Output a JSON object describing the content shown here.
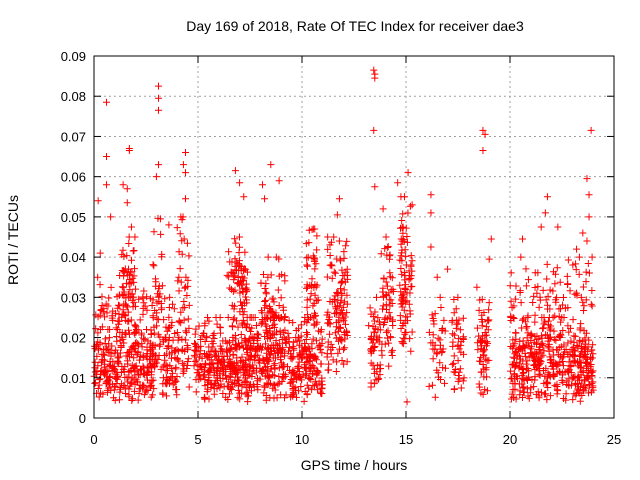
{
  "chart_data": {
    "type": "scatter",
    "title": "Day 169 of 2018, Rate Of TEC Index for receiver dae3",
    "xlabel": "GPS time / hours",
    "ylabel": "ROTI / TECUs",
    "xlim": [
      0,
      25
    ],
    "ylim": [
      0,
      0.09
    ],
    "xticks": [
      "0",
      "5",
      "10",
      "15",
      "20",
      "25"
    ],
    "yticks": [
      "0",
      "0.01",
      "0.02",
      "0.03",
      "0.04",
      "0.05",
      "0.06",
      "0.07",
      "0.08",
      "0.09"
    ],
    "grid": true,
    "marker": "plus",
    "color": "#ff0000",
    "clusters": [
      {
        "x": [
          0.0,
          3.0
        ],
        "y": [
          0.004,
          0.022
        ],
        "n": 260
      },
      {
        "x": [
          0.0,
          3.0
        ],
        "y": [
          0.015,
          0.035
        ],
        "n": 90
      },
      {
        "x": [
          1.2,
          2.0
        ],
        "y": [
          0.02,
          0.045
        ],
        "n": 60
      },
      {
        "x": [
          2.8,
          3.3
        ],
        "y": [
          0.01,
          0.05
        ],
        "n": 40
      },
      {
        "x": [
          3.3,
          4.0
        ],
        "y": [
          0.004,
          0.03
        ],
        "n": 70
      },
      {
        "x": [
          4.0,
          4.6
        ],
        "y": [
          0.005,
          0.05
        ],
        "n": 60
      },
      {
        "x": [
          4.8,
          11.0
        ],
        "y": [
          0.004,
          0.025
        ],
        "n": 650
      },
      {
        "x": [
          6.4,
          7.4
        ],
        "y": [
          0.02,
          0.045
        ],
        "n": 80
      },
      {
        "x": [
          8.0,
          9.2
        ],
        "y": [
          0.015,
          0.04
        ],
        "n": 80
      },
      {
        "x": [
          10.2,
          10.8
        ],
        "y": [
          0.02,
          0.047
        ],
        "n": 50
      },
      {
        "x": [
          11.2,
          12.2
        ],
        "y": [
          0.01,
          0.045
        ],
        "n": 120
      },
      {
        "x": [
          13.2,
          13.8
        ],
        "y": [
          0.007,
          0.03
        ],
        "n": 50
      },
      {
        "x": [
          13.8,
          14.4
        ],
        "y": [
          0.012,
          0.045
        ],
        "n": 60
      },
      {
        "x": [
          14.7,
          15.3
        ],
        "y": [
          0.015,
          0.055
        ],
        "n": 90
      },
      {
        "x": [
          16.1,
          16.9
        ],
        "y": [
          0.005,
          0.03
        ],
        "n": 40
      },
      {
        "x": [
          17.2,
          17.8
        ],
        "y": [
          0.005,
          0.03
        ],
        "n": 45
      },
      {
        "x": [
          18.4,
          19.0
        ],
        "y": [
          0.005,
          0.035
        ],
        "n": 60
      },
      {
        "x": [
          20.0,
          24.0
        ],
        "y": [
          0.004,
          0.025
        ],
        "n": 420
      },
      {
        "x": [
          20.0,
          24.0
        ],
        "y": [
          0.02,
          0.04
        ],
        "n": 90
      }
    ],
    "outliers": [
      {
        "x": 0.2,
        "y": 0.054
      },
      {
        "x": 0.3,
        "y": 0.041
      },
      {
        "x": 0.6,
        "y": 0.0785
      },
      {
        "x": 0.6,
        "y": 0.065
      },
      {
        "x": 0.6,
        "y": 0.058
      },
      {
        "x": 0.8,
        "y": 0.05
      },
      {
        "x": 1.4,
        "y": 0.058
      },
      {
        "x": 1.6,
        "y": 0.0535
      },
      {
        "x": 1.6,
        "y": 0.057
      },
      {
        "x": 1.7,
        "y": 0.0665
      },
      {
        "x": 1.7,
        "y": 0.067
      },
      {
        "x": 1.8,
        "y": 0.0475
      },
      {
        "x": 3.1,
        "y": 0.0825
      },
      {
        "x": 3.1,
        "y": 0.0795
      },
      {
        "x": 3.1,
        "y": 0.0765
      },
      {
        "x": 3.1,
        "y": 0.063
      },
      {
        "x": 3.0,
        "y": 0.06
      },
      {
        "x": 3.6,
        "y": 0.048
      },
      {
        "x": 4.4,
        "y": 0.066
      },
      {
        "x": 4.3,
        "y": 0.063
      },
      {
        "x": 4.4,
        "y": 0.061
      },
      {
        "x": 4.4,
        "y": 0.0545
      },
      {
        "x": 6.8,
        "y": 0.0615
      },
      {
        "x": 7.0,
        "y": 0.0585
      },
      {
        "x": 7.2,
        "y": 0.055
      },
      {
        "x": 8.1,
        "y": 0.058
      },
      {
        "x": 8.2,
        "y": 0.0545
      },
      {
        "x": 8.5,
        "y": 0.063
      },
      {
        "x": 8.9,
        "y": 0.059
      },
      {
        "x": 11.8,
        "y": 0.0545
      },
      {
        "x": 11.7,
        "y": 0.0505
      },
      {
        "x": 13.45,
        "y": 0.0865
      },
      {
        "x": 13.5,
        "y": 0.0855
      },
      {
        "x": 13.5,
        "y": 0.0845
      },
      {
        "x": 13.45,
        "y": 0.0715
      },
      {
        "x": 13.5,
        "y": 0.0575
      },
      {
        "x": 13.9,
        "y": 0.052
      },
      {
        "x": 14.6,
        "y": 0.0585
      },
      {
        "x": 15.1,
        "y": 0.061
      },
      {
        "x": 15.05,
        "y": 0.004
      },
      {
        "x": 16.2,
        "y": 0.0555
      },
      {
        "x": 16.2,
        "y": 0.051
      },
      {
        "x": 16.2,
        "y": 0.0425
      },
      {
        "x": 16.5,
        "y": 0.035
      },
      {
        "x": 17.0,
        "y": 0.037
      },
      {
        "x": 18.7,
        "y": 0.0715
      },
      {
        "x": 18.8,
        "y": 0.0705
      },
      {
        "x": 18.7,
        "y": 0.0665
      },
      {
        "x": 19.1,
        "y": 0.0445
      },
      {
        "x": 19.0,
        "y": 0.0395
      },
      {
        "x": 20.6,
        "y": 0.0445
      },
      {
        "x": 21.5,
        "y": 0.0475
      },
      {
        "x": 21.8,
        "y": 0.055
      },
      {
        "x": 21.7,
        "y": 0.051
      },
      {
        "x": 22.3,
        "y": 0.0475
      },
      {
        "x": 23.2,
        "y": 0.042
      },
      {
        "x": 23.7,
        "y": 0.0595
      },
      {
        "x": 23.8,
        "y": 0.0555
      },
      {
        "x": 23.8,
        "y": 0.05
      },
      {
        "x": 23.5,
        "y": 0.046
      },
      {
        "x": 23.9,
        "y": 0.0715
      },
      {
        "x": 23.7,
        "y": 0.044
      }
    ]
  }
}
